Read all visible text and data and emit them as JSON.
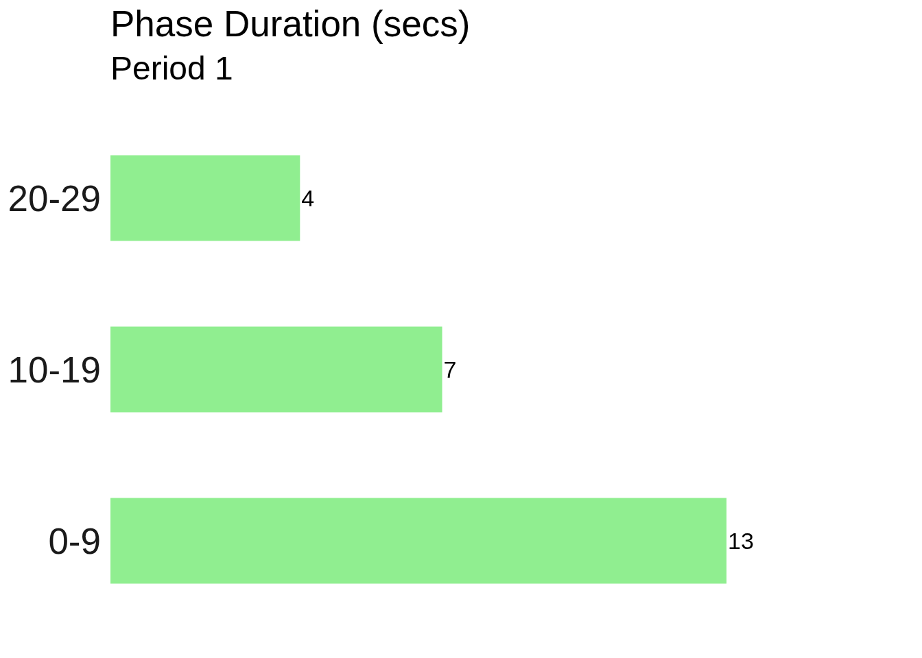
{
  "chart_data": {
    "type": "bar",
    "title": "Phase Duration (secs)",
    "subtitle": "Period 1",
    "orientation": "horizontal",
    "categories": [
      "20-29",
      "10-19",
      "0-9"
    ],
    "values": [
      4,
      7,
      13
    ],
    "color": "#90ee90",
    "data_labels": true
  }
}
